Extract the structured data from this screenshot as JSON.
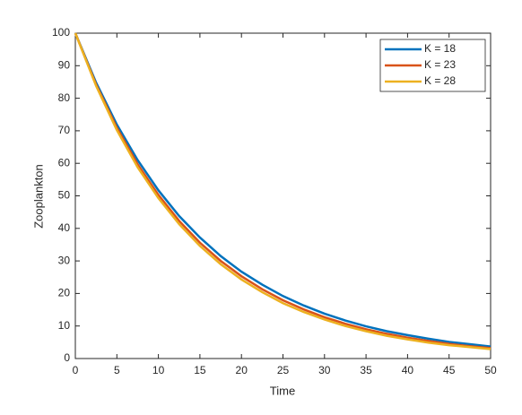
{
  "chart_data": {
    "type": "line",
    "xlabel": "Time",
    "ylabel": "Zooplankton",
    "x": [
      0,
      2.5,
      5,
      7.5,
      10,
      12.5,
      15,
      17.5,
      20,
      22.5,
      25,
      27.5,
      30,
      32.5,
      35,
      37.5,
      40,
      42.5,
      45,
      47.5,
      50
    ],
    "series": [
      {
        "name": "K = 18",
        "color": "#0072bd",
        "values": [
          100,
          84.8,
          71.9,
          61.0,
          51.7,
          43.8,
          37.2,
          31.5,
          26.7,
          22.7,
          19.2,
          16.3,
          13.8,
          11.7,
          9.9,
          8.4,
          7.2,
          6.1,
          5.1,
          4.4,
          3.7
        ]
      },
      {
        "name": "K = 23",
        "color": "#d95319",
        "values": [
          100,
          84.2,
          70.9,
          59.7,
          50.3,
          42.3,
          35.6,
          30.0,
          25.3,
          21.3,
          17.9,
          15.1,
          12.7,
          10.7,
          9.0,
          7.6,
          6.4,
          5.4,
          4.5,
          3.8,
          3.2
        ]
      },
      {
        "name": "K = 28",
        "color": "#edb120",
        "values": [
          100,
          83.8,
          70.2,
          58.8,
          49.3,
          41.3,
          34.6,
          29.0,
          24.3,
          20.4,
          17.0,
          14.3,
          12.0,
          10.0,
          8.4,
          7.0,
          5.9,
          4.9,
          4.1,
          3.5,
          2.9
        ]
      }
    ],
    "xlim": [
      0,
      50
    ],
    "xticks": [
      0,
      5,
      10,
      15,
      20,
      25,
      30,
      35,
      40,
      45,
      50
    ],
    "ylim": [
      0,
      100
    ],
    "yticks": [
      0,
      10,
      20,
      30,
      40,
      50,
      60,
      70,
      80,
      90,
      100
    ],
    "grid": false,
    "legend": "top-right"
  }
}
